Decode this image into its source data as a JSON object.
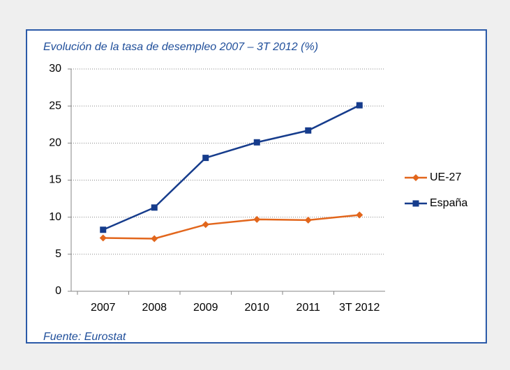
{
  "chart_data": {
    "type": "line",
    "title": "Evolución de la tasa de desempleo 2007 – 3T 2012 (%)",
    "source": "Fuente: Eurostat",
    "categories": [
      "2007",
      "2008",
      "2009",
      "2010",
      "2011",
      "3T 2012"
    ],
    "series": [
      {
        "name": "UE-27",
        "color": "#e2661c",
        "marker": "diamond",
        "values": [
          7.2,
          7.1,
          9.0,
          9.7,
          9.6,
          10.3
        ]
      },
      {
        "name": "España",
        "color": "#163c8c",
        "marker": "square",
        "values": [
          8.3,
          11.3,
          18.0,
          20.1,
          21.7,
          25.1
        ]
      }
    ],
    "ylim": [
      0,
      30
    ],
    "yticks": [
      0,
      5,
      10,
      15,
      20,
      25,
      30
    ],
    "grid": true,
    "legend": "right"
  }
}
